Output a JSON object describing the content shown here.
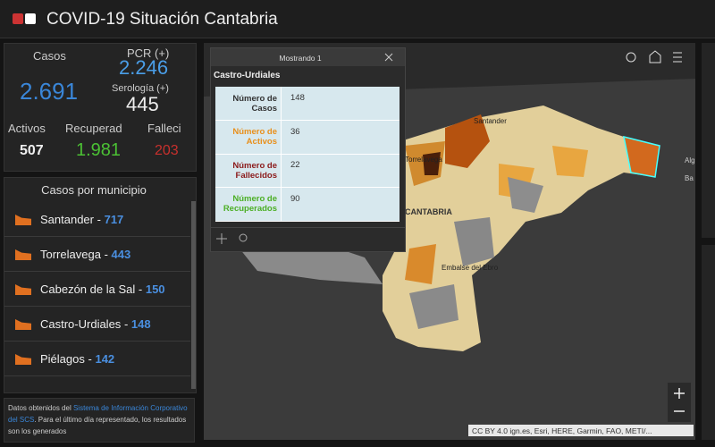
{
  "header": {
    "title": "COVID-19 Situación Cantabria"
  },
  "stats": {
    "casos": {
      "label": "Casos",
      "value": "2.691"
    },
    "pcr": {
      "label": "PCR (+)",
      "value": "2.246"
    },
    "serologia": {
      "label": "Serología (+)",
      "value": "445"
    },
    "activos": {
      "label": "Activos",
      "value": "507"
    },
    "recuperados": {
      "label": "Recuperad",
      "value": "1.981"
    },
    "fallecidos": {
      "label": "Falleci",
      "value": "203"
    }
  },
  "list": {
    "title": "Casos por municipio",
    "separator": "-",
    "items": [
      {
        "name": "Santander",
        "cases": "717"
      },
      {
        "name": "Torrelavega",
        "cases": "443"
      },
      {
        "name": "Cabezón de la Sal",
        "cases": "150"
      },
      {
        "name": "Castro-Urdiales",
        "cases": "148"
      },
      {
        "name": "Piélagos",
        "cases": "142"
      }
    ]
  },
  "note": {
    "before": "Datos obtenidos del",
    "link": "Sistema de Información Corporativo del SCS",
    "after": ". Para el último día representado, los resultados son los generados"
  },
  "popup": {
    "header": "Mostrando 1",
    "title": "Castro-Urdiales",
    "rows": [
      {
        "label": "Número de Casos",
        "value": "148"
      },
      {
        "label": "Número de Activos",
        "value": "36"
      },
      {
        "label": "Número de Fallecidos",
        "value": "22"
      },
      {
        "label": "Número de Recuperados",
        "value": "90"
      }
    ]
  },
  "map": {
    "labels": [
      "Santander",
      "Torrelavega",
      "CANTABRIA",
      "Embalse del Ebro",
      "Alg",
      "Ba"
    ],
    "attribution": "CC BY 4.0 ign.es, Esri, HERE, Garmin, FAO, METI/..."
  }
}
